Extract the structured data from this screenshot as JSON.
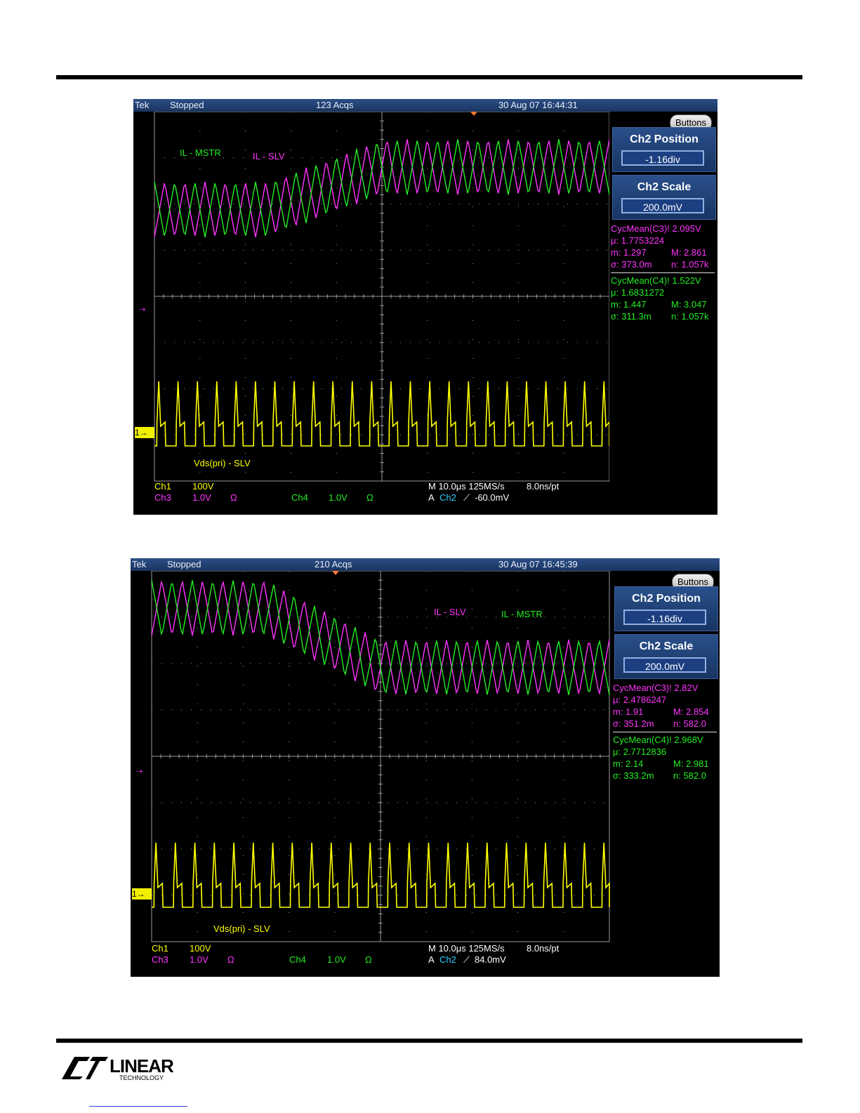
{
  "colors": {
    "ch1": "#ffff00",
    "ch3": "#ff33ff",
    "ch4": "#22ee22",
    "ch2": "#33ccff",
    "grid": "#9a9a9a",
    "menu": "#234a85"
  },
  "logo": {
    "text": "LINEAR",
    "sub": "TECHNOLOGY"
  },
  "scopes": [
    {
      "brand": "Tek",
      "status": "Stopped",
      "acqs": "123 Acqs",
      "datetime": "30 Aug 07 16:44:31",
      "buttons_label": "Buttons",
      "menus": [
        {
          "label": "Ch2 Position",
          "value": "-1.16div"
        },
        {
          "label": "Ch2 Scale",
          "value": "200.0mV"
        }
      ],
      "meas": [
        {
          "title": "CycMean(C3)! 2.095V",
          "mu": "μ: 1.7753224",
          "m": "m: 1.297",
          "M": "M: 2.861",
          "sigma": "σ: 373.0m",
          "n": "n: 1.057k",
          "color": "#ff33ff"
        },
        {
          "title": "CycMean(C4)! 1.522V",
          "mu": "μ: 1.6831272",
          "m": "m: 1.447",
          "M": "M: 3.047",
          "sigma": "σ: 311.3m",
          "n": "n: 1.057k",
          "color": "#22ee22"
        }
      ],
      "labels": [
        {
          "text": "IL - MSTR",
          "color": "#22ee22"
        },
        {
          "text": "IL - SLV",
          "color": "#ff33ff"
        },
        {
          "text": "Vds(pri) - SLV",
          "color": "#ffff00"
        }
      ],
      "bottom": {
        "ch1": "Ch1",
        "ch1_scale": "100V",
        "ch3": "Ch3",
        "ch3_scale": "1.0V",
        "ch3_ohm": "Ω",
        "ch4": "Ch4",
        "ch4_scale": "1.0V",
        "ch4_ohm": "Ω",
        "timebase": "M 10.0μs 125MS/s",
        "rate": "8.0ns/pt",
        "trig_a": "A",
        "trig_ch": "Ch2",
        "trig_slope": "⟋",
        "trig_level": "-60.0mV"
      },
      "ch1_marker": "1→",
      "trace_shape": "rise"
    },
    {
      "brand": "Tek",
      "status": "Stopped",
      "acqs": "210 Acqs",
      "datetime": "30 Aug 07 16:45:39",
      "buttons_label": "Buttons",
      "menus": [
        {
          "label": "Ch2 Position",
          "value": "-1.16div"
        },
        {
          "label": "Ch2 Scale",
          "value": "200.0mV"
        }
      ],
      "meas": [
        {
          "title": "CycMean(C3)! 2.82V",
          "mu": "μ: 2.4786247",
          "m": "m: 1.91",
          "M": "M: 2.854",
          "sigma": "σ: 351.2m",
          "n": "n: 582.0",
          "color": "#ff33ff"
        },
        {
          "title": "CycMean(C4)! 2.968V",
          "mu": "μ: 2.7712836",
          "m": "m: 2.14",
          "M": "M: 2.981",
          "sigma": "σ: 333.2m",
          "n": "n: 582.0",
          "color": "#22ee22"
        }
      ],
      "labels": [
        {
          "text": "IL - SLV",
          "color": "#ff33ff"
        },
        {
          "text": "IL - MSTR",
          "color": "#22ee22"
        },
        {
          "text": "Vds(pri) - SLV",
          "color": "#ffff00"
        }
      ],
      "bottom": {
        "ch1": "Ch1",
        "ch1_scale": "100V",
        "ch3": "Ch3",
        "ch3_scale": "1.0V",
        "ch3_ohm": "Ω",
        "ch4": "Ch4",
        "ch4_scale": "1.0V",
        "ch4_ohm": "Ω",
        "timebase": "M 10.0μs 125MS/s",
        "rate": "8.0ns/pt",
        "trig_a": "A",
        "trig_ch": "Ch2",
        "trig_slope": "⟋",
        "trig_level": "84.0mV"
      },
      "ch1_marker": "1→",
      "trace_shape": "fall"
    }
  ]
}
